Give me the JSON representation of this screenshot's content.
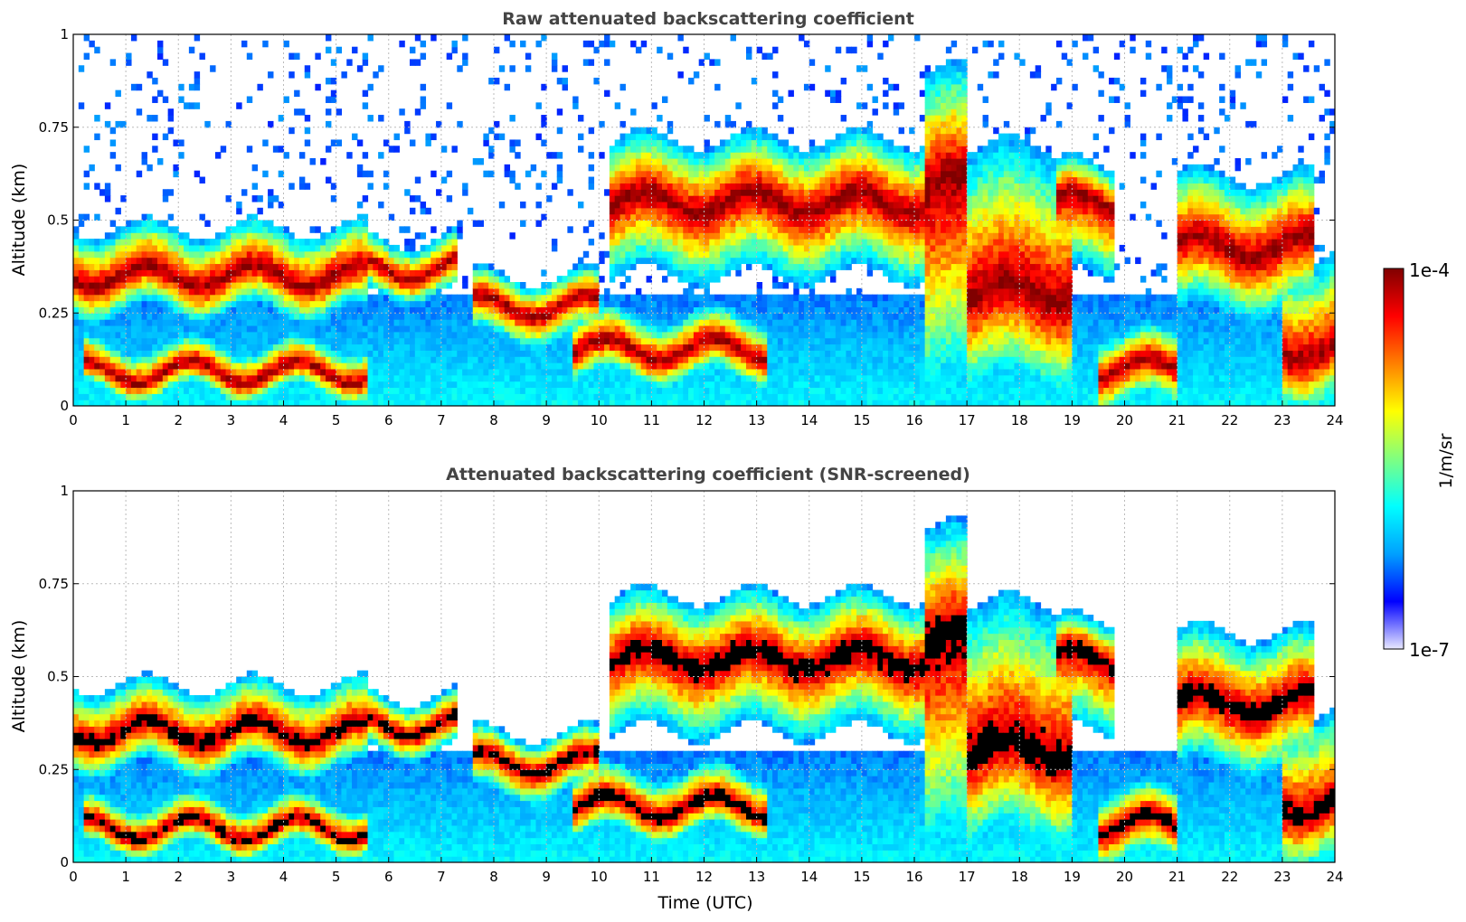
{
  "chart_data": [
    {
      "type": "heatmap",
      "title": "Raw attenuated backscattering coefficient",
      "xlabel": "",
      "ylabel": "Altitude (km)",
      "xlim": [
        0,
        24
      ],
      "ylim": [
        0,
        1
      ],
      "xticks": [
        "0",
        "1",
        "2",
        "3",
        "4",
        "5",
        "6",
        "7",
        "8",
        "9",
        "10",
        "11",
        "12",
        "13",
        "14",
        "15",
        "16",
        "17",
        "18",
        "19",
        "20",
        "21",
        "22",
        "23",
        "24"
      ],
      "yticks": [
        "0",
        "0.25",
        "0.5",
        "0.75",
        "1"
      ],
      "grid": true,
      "screened": false,
      "layers": [
        {
          "t0": 0.0,
          "t1": 5.6,
          "base": 0.25,
          "top": 0.48,
          "core": 0.35
        },
        {
          "t0": 0.2,
          "t1": 5.6,
          "base": 0.03,
          "top": 0.17,
          "core": 0.09
        },
        {
          "t0": 5.6,
          "t1": 7.3,
          "base": 0.3,
          "top": 0.45,
          "core": 0.37
        },
        {
          "t0": 7.6,
          "t1": 10.0,
          "base": 0.18,
          "top": 0.35,
          "core": 0.27
        },
        {
          "t0": 9.5,
          "t1": 13.2,
          "base": 0.07,
          "top": 0.25,
          "core": 0.15
        },
        {
          "t0": 10.2,
          "t1": 16.2,
          "base": 0.35,
          "top": 0.72,
          "core": 0.55
        },
        {
          "t0": 16.2,
          "t1": 17.0,
          "base": 0.0,
          "top": 0.9,
          "core": 0.6
        },
        {
          "t0": 17.0,
          "t1": 19.0,
          "base": 0.05,
          "top": 0.7,
          "core": 0.3
        },
        {
          "t0": 18.7,
          "t1": 19.8,
          "base": 0.35,
          "top": 0.65,
          "core": 0.55
        },
        {
          "t0": 19.5,
          "t1": 21.0,
          "base": 0.0,
          "top": 0.2,
          "core": 0.1
        },
        {
          "t0": 21.0,
          "t1": 23.6,
          "base": 0.25,
          "top": 0.62,
          "core": 0.43
        },
        {
          "t0": 23.0,
          "t1": 24.0,
          "base": 0.0,
          "top": 0.4,
          "core": 0.15
        }
      ]
    },
    {
      "type": "heatmap",
      "title": "Attenuated backscattering coefficient (SNR-screened)",
      "xlabel": "Time (UTC)",
      "ylabel": "Altitude (km)",
      "xlim": [
        0,
        24
      ],
      "ylim": [
        0,
        1
      ],
      "xticks": [
        "0",
        "1",
        "2",
        "3",
        "4",
        "5",
        "6",
        "7",
        "8",
        "9",
        "10",
        "11",
        "12",
        "13",
        "14",
        "15",
        "16",
        "17",
        "18",
        "19",
        "20",
        "21",
        "22",
        "23",
        "24"
      ],
      "yticks": [
        "0",
        "0.25",
        "0.5",
        "0.75",
        "1"
      ],
      "grid": true,
      "screened": true,
      "saturated_color": "#000000",
      "layers": [
        {
          "t0": 0.0,
          "t1": 5.6,
          "base": 0.25,
          "top": 0.48,
          "core": 0.35
        },
        {
          "t0": 0.2,
          "t1": 5.6,
          "base": 0.03,
          "top": 0.17,
          "core": 0.09
        },
        {
          "t0": 5.6,
          "t1": 7.3,
          "base": 0.3,
          "top": 0.45,
          "core": 0.37
        },
        {
          "t0": 7.6,
          "t1": 10.0,
          "base": 0.18,
          "top": 0.35,
          "core": 0.27
        },
        {
          "t0": 9.5,
          "t1": 13.2,
          "base": 0.07,
          "top": 0.25,
          "core": 0.15
        },
        {
          "t0": 10.2,
          "t1": 16.2,
          "base": 0.35,
          "top": 0.72,
          "core": 0.55
        },
        {
          "t0": 16.2,
          "t1": 17.0,
          "base": 0.0,
          "top": 0.9,
          "core": 0.6
        },
        {
          "t0": 17.0,
          "t1": 19.0,
          "base": 0.05,
          "top": 0.7,
          "core": 0.3
        },
        {
          "t0": 18.7,
          "t1": 19.8,
          "base": 0.35,
          "top": 0.65,
          "core": 0.55
        },
        {
          "t0": 19.5,
          "t1": 21.0,
          "base": 0.0,
          "top": 0.2,
          "core": 0.1
        },
        {
          "t0": 21.0,
          "t1": 23.6,
          "base": 0.25,
          "top": 0.62,
          "core": 0.43
        },
        {
          "t0": 23.0,
          "t1": 24.0,
          "base": 0.0,
          "top": 0.4,
          "core": 0.15
        }
      ]
    }
  ],
  "colorbar": {
    "label": "1/m/sr",
    "max_label": "1e-4",
    "min_label": "1e-7",
    "range": [
      1e-07,
      0.0001
    ],
    "scale": "log",
    "colormap": "jet",
    "colors": [
      "#e8e8ff",
      "#0000ff",
      "#00a0ff",
      "#00ffff",
      "#80ff80",
      "#ffff00",
      "#ff8000",
      "#ff0000",
      "#800000"
    ]
  }
}
